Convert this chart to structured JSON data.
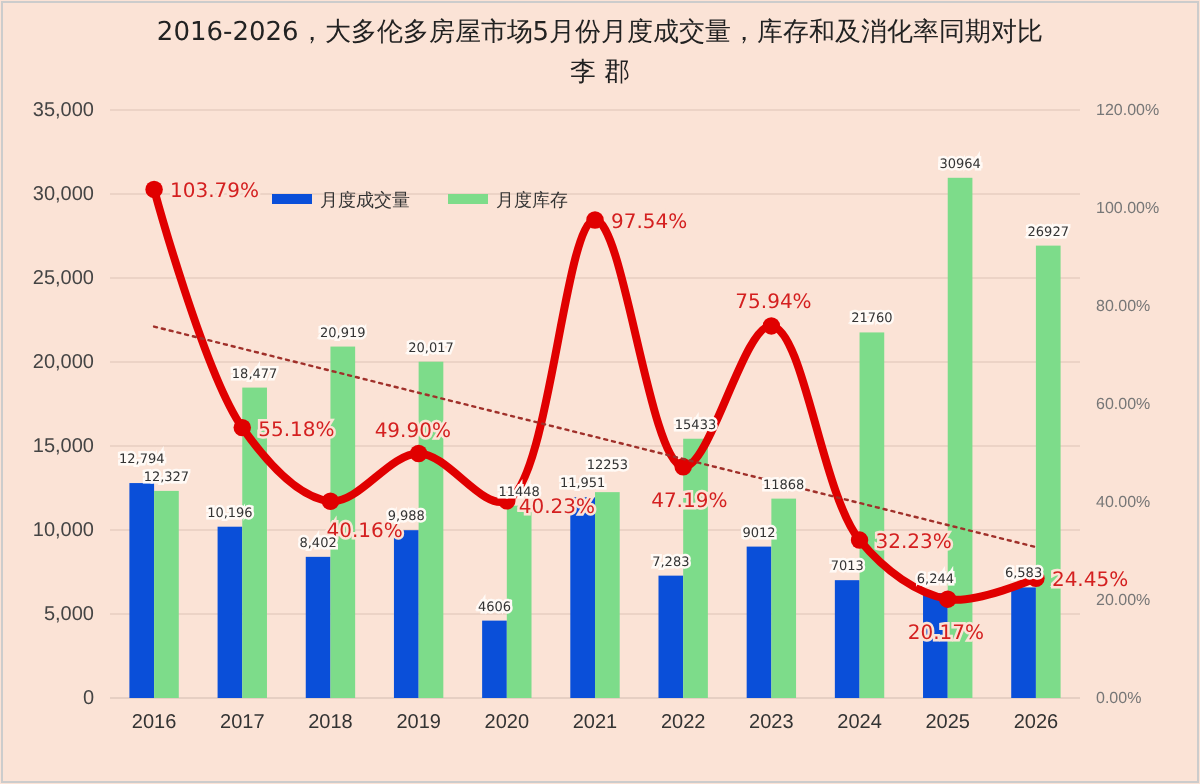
{
  "chart_data": {
    "type": "bar",
    "title": "2016-2026，大多伦多房屋市场5月份月度成交量，库存和及消化率同期对比",
    "subtitle": "李 郡",
    "categories": [
      "2016",
      "2017",
      "2018",
      "2019",
      "2020",
      "2021",
      "2022",
      "2023",
      "2024",
      "2025",
      "2026"
    ],
    "series": [
      {
        "name": "月度成交量",
        "color": "#0a4fd9",
        "values": [
          12794,
          10196,
          8402,
          9988,
          4606,
          11951,
          7283,
          9012,
          7013,
          6244,
          6583
        ],
        "value_labels": [
          "12,794",
          "10,196",
          "8,402",
          "9,988",
          "4606",
          "11,951",
          "7,283",
          "9012",
          "7013",
          "6,244",
          "6,583"
        ]
      },
      {
        "name": "月度库存",
        "color": "#7ddc8a",
        "values": [
          12327,
          18477,
          20919,
          20017,
          11448,
          12253,
          15433,
          11868,
          21760,
          30964,
          26927
        ],
        "value_labels": [
          "12,327",
          "18,477",
          "20,919",
          "20,017",
          "11448",
          "12253",
          "15433",
          "11868",
          "21760",
          "30964",
          "26927"
        ]
      },
      {
        "type": "line",
        "axis": "y2",
        "color": "#e00000",
        "marker": "circle",
        "line_style": "solid",
        "values": [
          103.79,
          55.18,
          40.16,
          49.9,
          40.23,
          97.54,
          47.19,
          75.94,
          32.23,
          20.17,
          24.45
        ],
        "value_labels": [
          "103.79%",
          "55.18%",
          "40.16%",
          "49.90%",
          "40.23%",
          "97.54%",
          "47.19%",
          "75.94%",
          "32.23%",
          "20.17%",
          "24.45%"
        ]
      },
      {
        "type": "line",
        "axis": "y2",
        "color": "#a0302a",
        "marker": "none",
        "line_style": "dotted",
        "values": [
          75.8,
          71.3,
          66.8,
          62.3,
          57.8,
          53.3,
          48.8,
          44.3,
          39.8,
          35.3,
          30.8
        ]
      }
    ],
    "ylim": [
      0,
      35000
    ],
    "yticks": [
      {
        "value": 0,
        "label": "0"
      },
      {
        "value": 5000,
        "label": "5,000"
      },
      {
        "value": 10000,
        "label": "10,000"
      },
      {
        "value": 15000,
        "label": "15,000"
      },
      {
        "value": 20000,
        "label": "20,000"
      },
      {
        "value": 25000,
        "label": "25,000"
      },
      {
        "value": 30000,
        "label": "30,000"
      },
      {
        "value": 35000,
        "label": "35,000"
      }
    ],
    "y2lim": [
      0,
      120
    ],
    "y2ticks": [
      {
        "value": 0,
        "label": "0.00%"
      },
      {
        "value": 20,
        "label": "20.00%"
      },
      {
        "value": 40,
        "label": "40.00%"
      },
      {
        "value": 60,
        "label": "60.00%"
      },
      {
        "value": 80,
        "label": "80.00%"
      },
      {
        "value": 100,
        "label": "100.00%"
      },
      {
        "value": 120,
        "label": "120.00%"
      }
    ],
    "grid": "y",
    "legend": "top left"
  }
}
